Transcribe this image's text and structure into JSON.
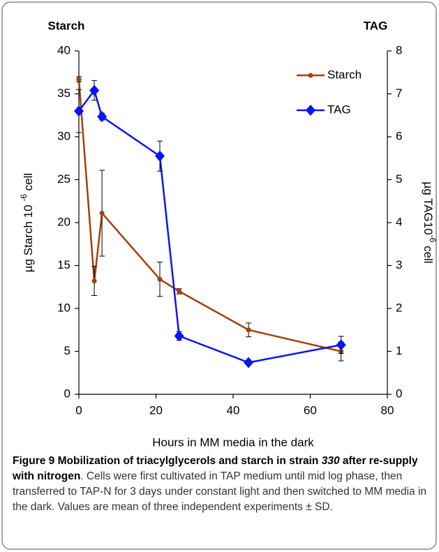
{
  "chart_data": {
    "type": "line",
    "y_title": "Starch",
    "y2_title": "TAG",
    "xlabel": "Hours in MM media in the dark",
    "ylabel": [
      "µg Starch 10 ",
      "-6",
      " cell"
    ],
    "y2label": [
      "µg TAG10",
      "-6",
      " cell"
    ],
    "x": [
      0,
      4,
      6,
      21,
      26,
      44,
      68
    ],
    "series": [
      {
        "name": "Starch",
        "color": "#a0410d",
        "marker": "circle",
        "values": [
          36.7,
          13.2,
          21.1,
          13.4,
          12.0,
          7.5,
          5.0
        ],
        "errors": [
          0.3,
          1.7,
          5.0,
          2.0,
          0.3,
          0.8,
          1.1
        ]
      },
      {
        "name": "TAG",
        "color": "#0a14f5",
        "marker": "diamond",
        "axis": "y2",
        "values": [
          6.6,
          7.08,
          6.47,
          5.55,
          1.36,
          0.74,
          1.15
        ],
        "errors": [
          0.5,
          0.23,
          0.08,
          0.35,
          0.1,
          0.05,
          0.2
        ]
      }
    ],
    "xlim": [
      0,
      80
    ],
    "xticks": [
      0,
      20,
      40,
      60,
      80
    ],
    "ylim": [
      0,
      40
    ],
    "yticks": [
      0,
      5,
      10,
      15,
      20,
      25,
      30,
      35,
      40
    ],
    "y2lim": [
      0,
      8
    ],
    "y2ticks": [
      0,
      1,
      2,
      3,
      4,
      5,
      6,
      7,
      8
    ],
    "grid": false,
    "legend": "upper right"
  },
  "caption": {
    "label": "Figure 9",
    "title_a": " Mobilization of triacylglycerols and starch in strain ",
    "strain": "330",
    "title_b": " after re-supply with nitrogen",
    "text": ". Cells were first cultivated in TAP medium until mid log phase, then transferred to TAP-N for 3 days under constant light and then switched to MM media in the dark. Values are mean of three independent experiments ± SD."
  }
}
